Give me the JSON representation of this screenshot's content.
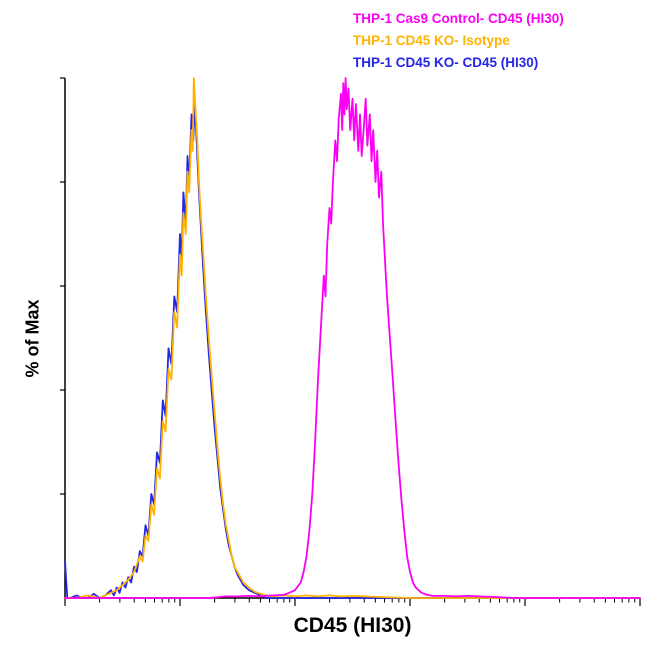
{
  "page": {
    "background": "#FFFFFF"
  },
  "legend": {
    "items": [
      {
        "label": "THP-1 Cas9 Control- CD45 (HI30)",
        "color": "#FB00F5"
      },
      {
        "label": "THP-1 CD45 KO- Isotype",
        "color": "#FFB300"
      },
      {
        "label": "THP-1 CD45 KO- CD45 (HI30)",
        "color": "#2525E8"
      }
    ]
  },
  "chart_data": {
    "type": "line",
    "subtype": "flow-cytometry-histogram-overlay",
    "title": "",
    "xlabel": "CD45 (HI30)",
    "ylabel": "% of Max",
    "x_axis": {
      "scale": "log",
      "decades": 5,
      "range_percent": [
        0,
        100
      ]
    },
    "y_axis": {
      "range_percent": [
        0,
        100
      ],
      "ticks_percent": [
        20,
        40,
        60,
        80,
        100
      ]
    },
    "legend_position": "top-right",
    "grid": false,
    "series": [
      {
        "name": "THP-1 CD45 KO- CD45 (HI30)",
        "color": "#2525E8",
        "points": [
          [
            0,
            7
          ],
          [
            0.4,
            0
          ],
          [
            1,
            0
          ],
          [
            2,
            0.5
          ],
          [
            3,
            0
          ],
          [
            4,
            0
          ],
          [
            5,
            0.8
          ],
          [
            6,
            0
          ],
          [
            7,
            0.5
          ],
          [
            8,
            1.5
          ],
          [
            8.5,
            0.5
          ],
          [
            9,
            2
          ],
          [
            9.5,
            1
          ],
          [
            10,
            3
          ],
          [
            10.5,
            2
          ],
          [
            11,
            4
          ],
          [
            11.5,
            3
          ],
          [
            12,
            6
          ],
          [
            12.5,
            5
          ],
          [
            13,
            9
          ],
          [
            13.5,
            8
          ],
          [
            14,
            14
          ],
          [
            14.5,
            12
          ],
          [
            15,
            20
          ],
          [
            15.5,
            18
          ],
          [
            16,
            28
          ],
          [
            16.5,
            26
          ],
          [
            17,
            38
          ],
          [
            17.5,
            35
          ],
          [
            18,
            48
          ],
          [
            18.5,
            45
          ],
          [
            19,
            58
          ],
          [
            19.5,
            55
          ],
          [
            20,
            70
          ],
          [
            20.3,
            65
          ],
          [
            20.6,
            78
          ],
          [
            21,
            72
          ],
          [
            21.3,
            85
          ],
          [
            21.6,
            80
          ],
          [
            22,
            93
          ],
          [
            22.3,
            88
          ],
          [
            22.6,
            95
          ],
          [
            23,
            85
          ],
          [
            23.3,
            78
          ],
          [
            23.6,
            72
          ],
          [
            24,
            64
          ],
          [
            24.5,
            55
          ],
          [
            25,
            47
          ],
          [
            25.5,
            40
          ],
          [
            26,
            33
          ],
          [
            26.5,
            27
          ],
          [
            27,
            21
          ],
          [
            27.5,
            17
          ],
          [
            28,
            13
          ],
          [
            28.5,
            10
          ],
          [
            29,
            8
          ],
          [
            29.5,
            6
          ],
          [
            30,
            4.5
          ],
          [
            30.5,
            3.5
          ],
          [
            31,
            2.5
          ],
          [
            32,
            1.5
          ],
          [
            33,
            1
          ],
          [
            34,
            0.5
          ],
          [
            35,
            0
          ],
          [
            40,
            0
          ],
          [
            50,
            0
          ],
          [
            60,
            0
          ],
          [
            70,
            0
          ],
          [
            80,
            0
          ],
          [
            90,
            0
          ],
          [
            100,
            0
          ]
        ]
      },
      {
        "name": "THP-1 CD45 KO- Isotype",
        "color": "#FFB300",
        "points": [
          [
            0,
            0
          ],
          [
            2,
            0
          ],
          [
            4,
            0.5
          ],
          [
            6,
            0
          ],
          [
            8,
            1
          ],
          [
            9,
            1.5
          ],
          [
            10,
            2.5
          ],
          [
            11,
            3.5
          ],
          [
            12,
            5
          ],
          [
            13,
            8
          ],
          [
            13.5,
            7
          ],
          [
            14,
            12
          ],
          [
            14.5,
            11
          ],
          [
            15,
            18
          ],
          [
            15.5,
            16
          ],
          [
            16,
            25
          ],
          [
            16.5,
            23
          ],
          [
            17,
            34
          ],
          [
            17.5,
            32
          ],
          [
            18,
            44
          ],
          [
            18.5,
            42
          ],
          [
            19,
            55
          ],
          [
            19.5,
            52
          ],
          [
            20,
            66
          ],
          [
            20.3,
            62
          ],
          [
            20.6,
            74
          ],
          [
            21,
            70
          ],
          [
            21.3,
            82
          ],
          [
            21.6,
            78
          ],
          [
            22,
            90
          ],
          [
            22.2,
            86
          ],
          [
            22.4,
            100
          ],
          [
            22.7,
            94
          ],
          [
            23,
            88
          ],
          [
            23.3,
            80
          ],
          [
            23.6,
            74
          ],
          [
            24,
            67
          ],
          [
            24.5,
            58
          ],
          [
            25,
            50
          ],
          [
            25.5,
            43
          ],
          [
            26,
            36
          ],
          [
            26.5,
            29
          ],
          [
            27,
            23
          ],
          [
            27.5,
            18
          ],
          [
            28,
            14
          ],
          [
            28.5,
            11
          ],
          [
            29,
            8
          ],
          [
            29.5,
            6
          ],
          [
            30,
            5
          ],
          [
            31,
            3
          ],
          [
            32,
            2
          ],
          [
            33,
            1.2
          ],
          [
            34,
            0.8
          ],
          [
            35,
            0.5
          ],
          [
            36,
            0.3
          ],
          [
            38,
            0.5
          ],
          [
            40,
            0.3
          ],
          [
            42,
            0.5
          ],
          [
            44,
            0.3
          ],
          [
            46,
            0.5
          ],
          [
            48,
            0.3
          ],
          [
            50,
            0.4
          ],
          [
            52,
            0.3
          ],
          [
            55,
            0.2
          ],
          [
            60,
            0
          ],
          [
            70,
            0
          ],
          [
            80,
            0
          ],
          [
            90,
            0
          ],
          [
            100,
            0
          ]
        ]
      },
      {
        "name": "THP-1 Cas9 Control- CD45 (HI30)",
        "color": "#FB00F5",
        "points": [
          [
            0,
            0
          ],
          [
            5,
            0
          ],
          [
            10,
            0
          ],
          [
            15,
            0
          ],
          [
            20,
            0
          ],
          [
            25,
            0
          ],
          [
            28,
            0.3
          ],
          [
            30,
            0.3
          ],
          [
            32,
            0.4
          ],
          [
            34,
            0.3
          ],
          [
            36,
            0.5
          ],
          [
            38,
            0.6
          ],
          [
            39,
            1
          ],
          [
            40,
            1.5
          ],
          [
            41,
            3
          ],
          [
            41.5,
            5
          ],
          [
            42,
            8
          ],
          [
            42.5,
            13
          ],
          [
            43,
            20
          ],
          [
            43.5,
            30
          ],
          [
            44,
            42
          ],
          [
            44.5,
            52
          ],
          [
            45,
            62
          ],
          [
            45.3,
            58
          ],
          [
            45.6,
            68
          ],
          [
            46,
            75
          ],
          [
            46.3,
            72
          ],
          [
            46.6,
            80
          ],
          [
            47,
            88
          ],
          [
            47.3,
            84
          ],
          [
            47.6,
            92
          ],
          [
            48,
            97
          ],
          [
            48.2,
            90
          ],
          [
            48.4,
            99
          ],
          [
            48.6,
            93
          ],
          [
            48.8,
            100
          ],
          [
            49,
            94
          ],
          [
            49.3,
            98
          ],
          [
            49.6,
            90
          ],
          [
            50,
            96
          ],
          [
            50.3,
            88
          ],
          [
            50.6,
            95
          ],
          [
            51,
            86
          ],
          [
            51.3,
            93
          ],
          [
            51.6,
            85
          ],
          [
            52,
            91
          ],
          [
            52.3,
            96
          ],
          [
            52.6,
            87
          ],
          [
            53,
            93
          ],
          [
            53.3,
            84
          ],
          [
            53.6,
            90
          ],
          [
            54,
            80
          ],
          [
            54.3,
            86
          ],
          [
            54.6,
            77
          ],
          [
            55,
            82
          ],
          [
            55.3,
            72
          ],
          [
            55.6,
            66
          ],
          [
            56,
            58
          ],
          [
            56.5,
            50
          ],
          [
            57,
            42
          ],
          [
            57.5,
            34
          ],
          [
            58,
            26
          ],
          [
            58.5,
            19
          ],
          [
            59,
            13
          ],
          [
            59.5,
            8
          ],
          [
            60,
            5
          ],
          [
            60.5,
            3
          ],
          [
            61,
            2
          ],
          [
            62,
            1
          ],
          [
            63,
            0.6
          ],
          [
            64,
            0.4
          ],
          [
            66,
            0.4
          ],
          [
            68,
            0.3
          ],
          [
            70,
            0.4
          ],
          [
            72,
            0.3
          ],
          [
            75,
            0.2
          ],
          [
            78,
            0
          ],
          [
            85,
            0
          ],
          [
            92,
            0
          ],
          [
            100,
            0
          ]
        ]
      }
    ]
  }
}
